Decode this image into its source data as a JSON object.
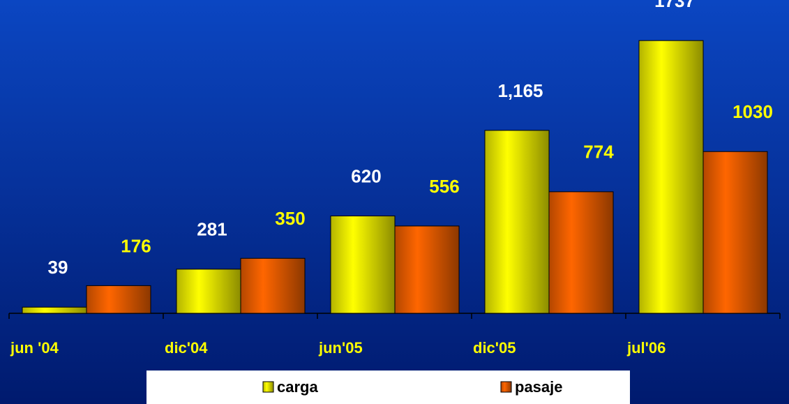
{
  "chart_data": {
    "type": "bar",
    "categories": [
      "jun '04",
      "dic'04",
      "jun'05",
      "dic'05",
      "jul'06"
    ],
    "series": [
      {
        "name": "carga",
        "color": "#ffff00",
        "values": [
          39,
          281,
          620,
          1165,
          1737
        ],
        "value_labels": [
          "39",
          "281",
          "620",
          "1,165",
          "1737"
        ]
      },
      {
        "name": "pasaje",
        "color": "#ff6600",
        "values": [
          176,
          350,
          556,
          774,
          1030
        ]
      }
    ]
  }
}
